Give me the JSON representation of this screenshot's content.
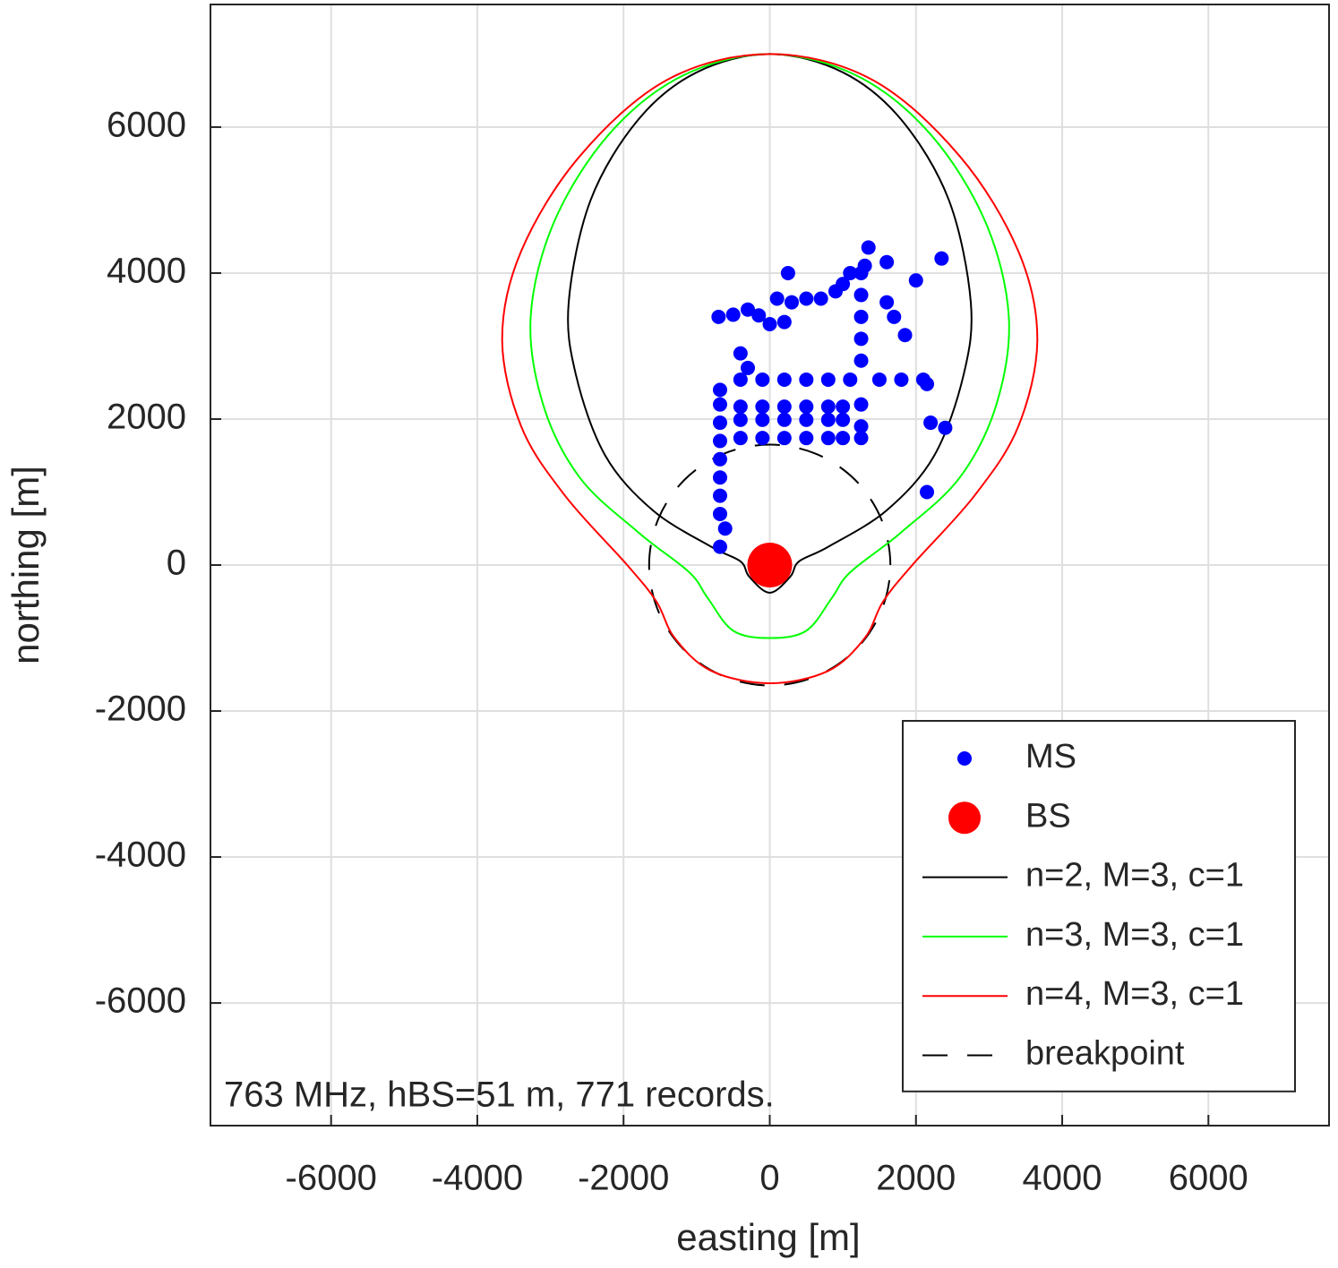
{
  "chart_data": {
    "type": "scatter",
    "xlabel": "easting [m]",
    "ylabel": "northing [m]",
    "annotation": "763 MHz, hBS=51 m, 771 records.",
    "xlim": [
      -7650,
      7650
    ],
    "ylim": [
      -7680,
      7680
    ],
    "xticks": [
      -6000,
      -4000,
      -2000,
      0,
      2000,
      4000,
      6000
    ],
    "yticks": [
      -6000,
      -4000,
      -2000,
      0,
      2000,
      4000,
      6000
    ],
    "grid": true,
    "legend": "southeast",
    "series": [
      {
        "name": "MS",
        "color": "#0000ff",
        "mode": "markers",
        "marker_size": 8,
        "x": [
          -680,
          -610,
          -680,
          -680,
          -680,
          -680,
          -680,
          -680,
          -680,
          -680,
          -400,
          -100,
          200,
          500,
          800,
          1000,
          1250,
          -400,
          -100,
          200,
          500,
          800,
          1000,
          -400,
          -100,
          200,
          500,
          800,
          1000,
          -400,
          -100,
          200,
          500,
          800,
          1100,
          1500,
          1800,
          2100,
          2150,
          1250,
          1250,
          1250,
          1250,
          1250,
          1250,
          1250,
          -700,
          -500,
          -300,
          -150,
          0,
          200,
          300,
          500,
          700,
          900,
          1000,
          1100,
          1300,
          100,
          250,
          -400,
          -300,
          1350,
          1600,
          1600,
          1700,
          1850,
          2000,
          2350,
          2200,
          2400,
          2150
        ],
        "values": [
          250,
          500,
          700,
          950,
          1200,
          1450,
          1700,
          1950,
          2200,
          2400,
          1740,
          1740,
          1740,
          1740,
          1740,
          1740,
          1740,
          1990,
          1990,
          1990,
          1990,
          1990,
          1990,
          2170,
          2170,
          2170,
          2170,
          2170,
          2170,
          2540,
          2540,
          2540,
          2540,
          2540,
          2540,
          2540,
          2540,
          2540,
          2480,
          1900,
          2200,
          2800,
          3100,
          3400,
          3700,
          4000,
          3400,
          3430,
          3500,
          3420,
          3300,
          3330,
          3600,
          3650,
          3650,
          3750,
          3850,
          4000,
          4100,
          3650,
          4000,
          2900,
          2700,
          4350,
          4150,
          3600,
          3400,
          3150,
          3900,
          4200,
          1950,
          1880,
          1000
        ]
      },
      {
        "name": "BS",
        "color": "#ff0000",
        "mode": "markers",
        "marker_size": 25,
        "x": [
          0
        ],
        "values": [
          0
        ]
      },
      {
        "name": "n=2, M=3, c=1",
        "color": "#000000",
        "mode": "line",
        "closed": true,
        "x": [
          0,
          1000,
          1800,
          2450,
          2750,
          2650,
          2250,
          1600,
          800,
          400,
          280,
          0,
          -280,
          -400,
          -800,
          -1600,
          -2250,
          -2650,
          -2750,
          -2450,
          -1800,
          -1000
        ],
        "values": [
          7000,
          6750,
          6100,
          5000,
          3600,
          2600,
          1500,
          750,
          250,
          50,
          -160,
          -380,
          -160,
          50,
          250,
          750,
          1500,
          2600,
          3600,
          5000,
          6100,
          6750
        ]
      },
      {
        "name": "n=3, M=3, c=1",
        "color": "#00ff00",
        "mode": "line",
        "closed": true,
        "x": [
          0,
          1200,
          2200,
          2950,
          3270,
          3100,
          2600,
          1800,
          1100,
          850,
          500,
          0,
          -500,
          -850,
          -1100,
          -1800,
          -2600,
          -3100,
          -3270,
          -2950,
          -2200,
          -1200
        ],
        "values": [
          7000,
          6700,
          5900,
          4700,
          3400,
          2200,
          1200,
          450,
          -100,
          -450,
          -900,
          -1000,
          -900,
          -450,
          -100,
          450,
          1200,
          2200,
          3400,
          4700,
          5900,
          6700
        ]
      },
      {
        "name": "n=4, M=3, c=1",
        "color": "#ff0000",
        "mode": "line",
        "closed": true,
        "x": [
          0,
          1400,
          2600,
          3400,
          3660,
          3400,
          2800,
          1950,
          1550,
          1300,
          800,
          0,
          -800,
          -1300,
          -1550,
          -1950,
          -2800,
          -3400,
          -3660,
          -3400,
          -2600,
          -1400
        ],
        "values": [
          7000,
          6650,
          5600,
          4300,
          3100,
          1900,
          950,
          0,
          -500,
          -1000,
          -1450,
          -1620,
          -1450,
          -1000,
          -500,
          0,
          950,
          1900,
          3100,
          4300,
          5600,
          6650
        ]
      },
      {
        "name": "breakpoint",
        "color": "#000000",
        "mode": "line",
        "dashed": true,
        "closed": true,
        "x": [
          1650,
          1524,
          1167,
          632,
          0,
          -632,
          -1167,
          -1524,
          -1650,
          -1524,
          -1167,
          -632,
          0,
          632,
          1167,
          1524
        ],
        "values": [
          0,
          632,
          1167,
          1524,
          1650,
          1524,
          1167,
          632,
          0,
          -632,
          -1167,
          -1524,
          -1650,
          -1524,
          -1167,
          -632
        ]
      }
    ]
  }
}
